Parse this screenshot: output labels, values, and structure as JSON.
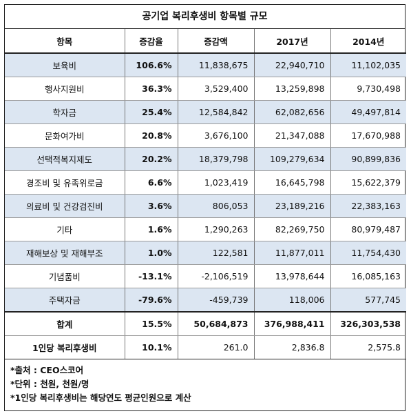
{
  "title": "공기업 복리후생비 항목별 규모",
  "headers": [
    "항목",
    "증감율",
    "증감액",
    "2017년",
    "2014년"
  ],
  "rows": [
    {
      "name": "보육비",
      "rate": "106.6%",
      "change": "11,838,675",
      "y2017": "22,940,710",
      "y2014": "11,102,035",
      "shaded": true
    },
    {
      "name": "행사지원비",
      "rate": "36.3%",
      "change": "3,529,400",
      "y2017": "13,259,898",
      "y2014": "9,730,498",
      "shaded": false
    },
    {
      "name": "학자금",
      "rate": "25.4%",
      "change": "12,584,842",
      "y2017": "62,082,656",
      "y2014": "49,497,814",
      "shaded": true
    },
    {
      "name": "문화여가비",
      "rate": "20.8%",
      "change": "3,676,100",
      "y2017": "21,347,088",
      "y2014": "17,670,988",
      "shaded": false
    },
    {
      "name": "선택적복지제도",
      "rate": "20.2%",
      "change": "18,379,798",
      "y2017": "109,279,634",
      "y2014": "90,899,836",
      "shaded": true
    },
    {
      "name": "경조비 및 유족위로금",
      "rate": "6.6%",
      "change": "1,023,419",
      "y2017": "16,645,798",
      "y2014": "15,622,379",
      "shaded": false
    },
    {
      "name": "의료비 및 건강검진비",
      "rate": "3.6%",
      "change": "806,053",
      "y2017": "23,189,216",
      "y2014": "22,383,163",
      "shaded": true
    },
    {
      "name": "기타",
      "rate": "1.6%",
      "change": "1,290,263",
      "y2017": "82,269,750",
      "y2014": "80,979,487",
      "shaded": false
    },
    {
      "name": "재해보상 및 재해부조",
      "rate": "1.0%",
      "change": "122,581",
      "y2017": "11,877,011",
      "y2014": "11,754,430",
      "shaded": true
    },
    {
      "name": "기념품비",
      "rate": "-13.1%",
      "change": "-2,106,519",
      "y2017": "13,978,644",
      "y2014": "16,085,163",
      "shaded": false
    },
    {
      "name": "주택자금",
      "rate": "-79.6%",
      "change": "-459,739",
      "y2017": "118,006",
      "y2014": "577,745",
      "shaded": true
    }
  ],
  "total": {
    "name": "합계",
    "rate": "15.5%",
    "change": "50,684,873",
    "y2017": "376,988,411",
    "y2014": "326,303,538"
  },
  "per_capita": {
    "name": "1인당 복리후생비",
    "rate": "10.1%",
    "change": "261.0",
    "y2017": "2,836.8",
    "y2014": "2,575.8"
  },
  "notes": [
    "*출처 : CEO스코어",
    "*단위 : 천원, 천원/명",
    "*1인당 복리후생비는 해당연도 평균인원으로 계산"
  ],
  "colors": {
    "row_shade": "#dce6f2",
    "border": "#222222"
  }
}
